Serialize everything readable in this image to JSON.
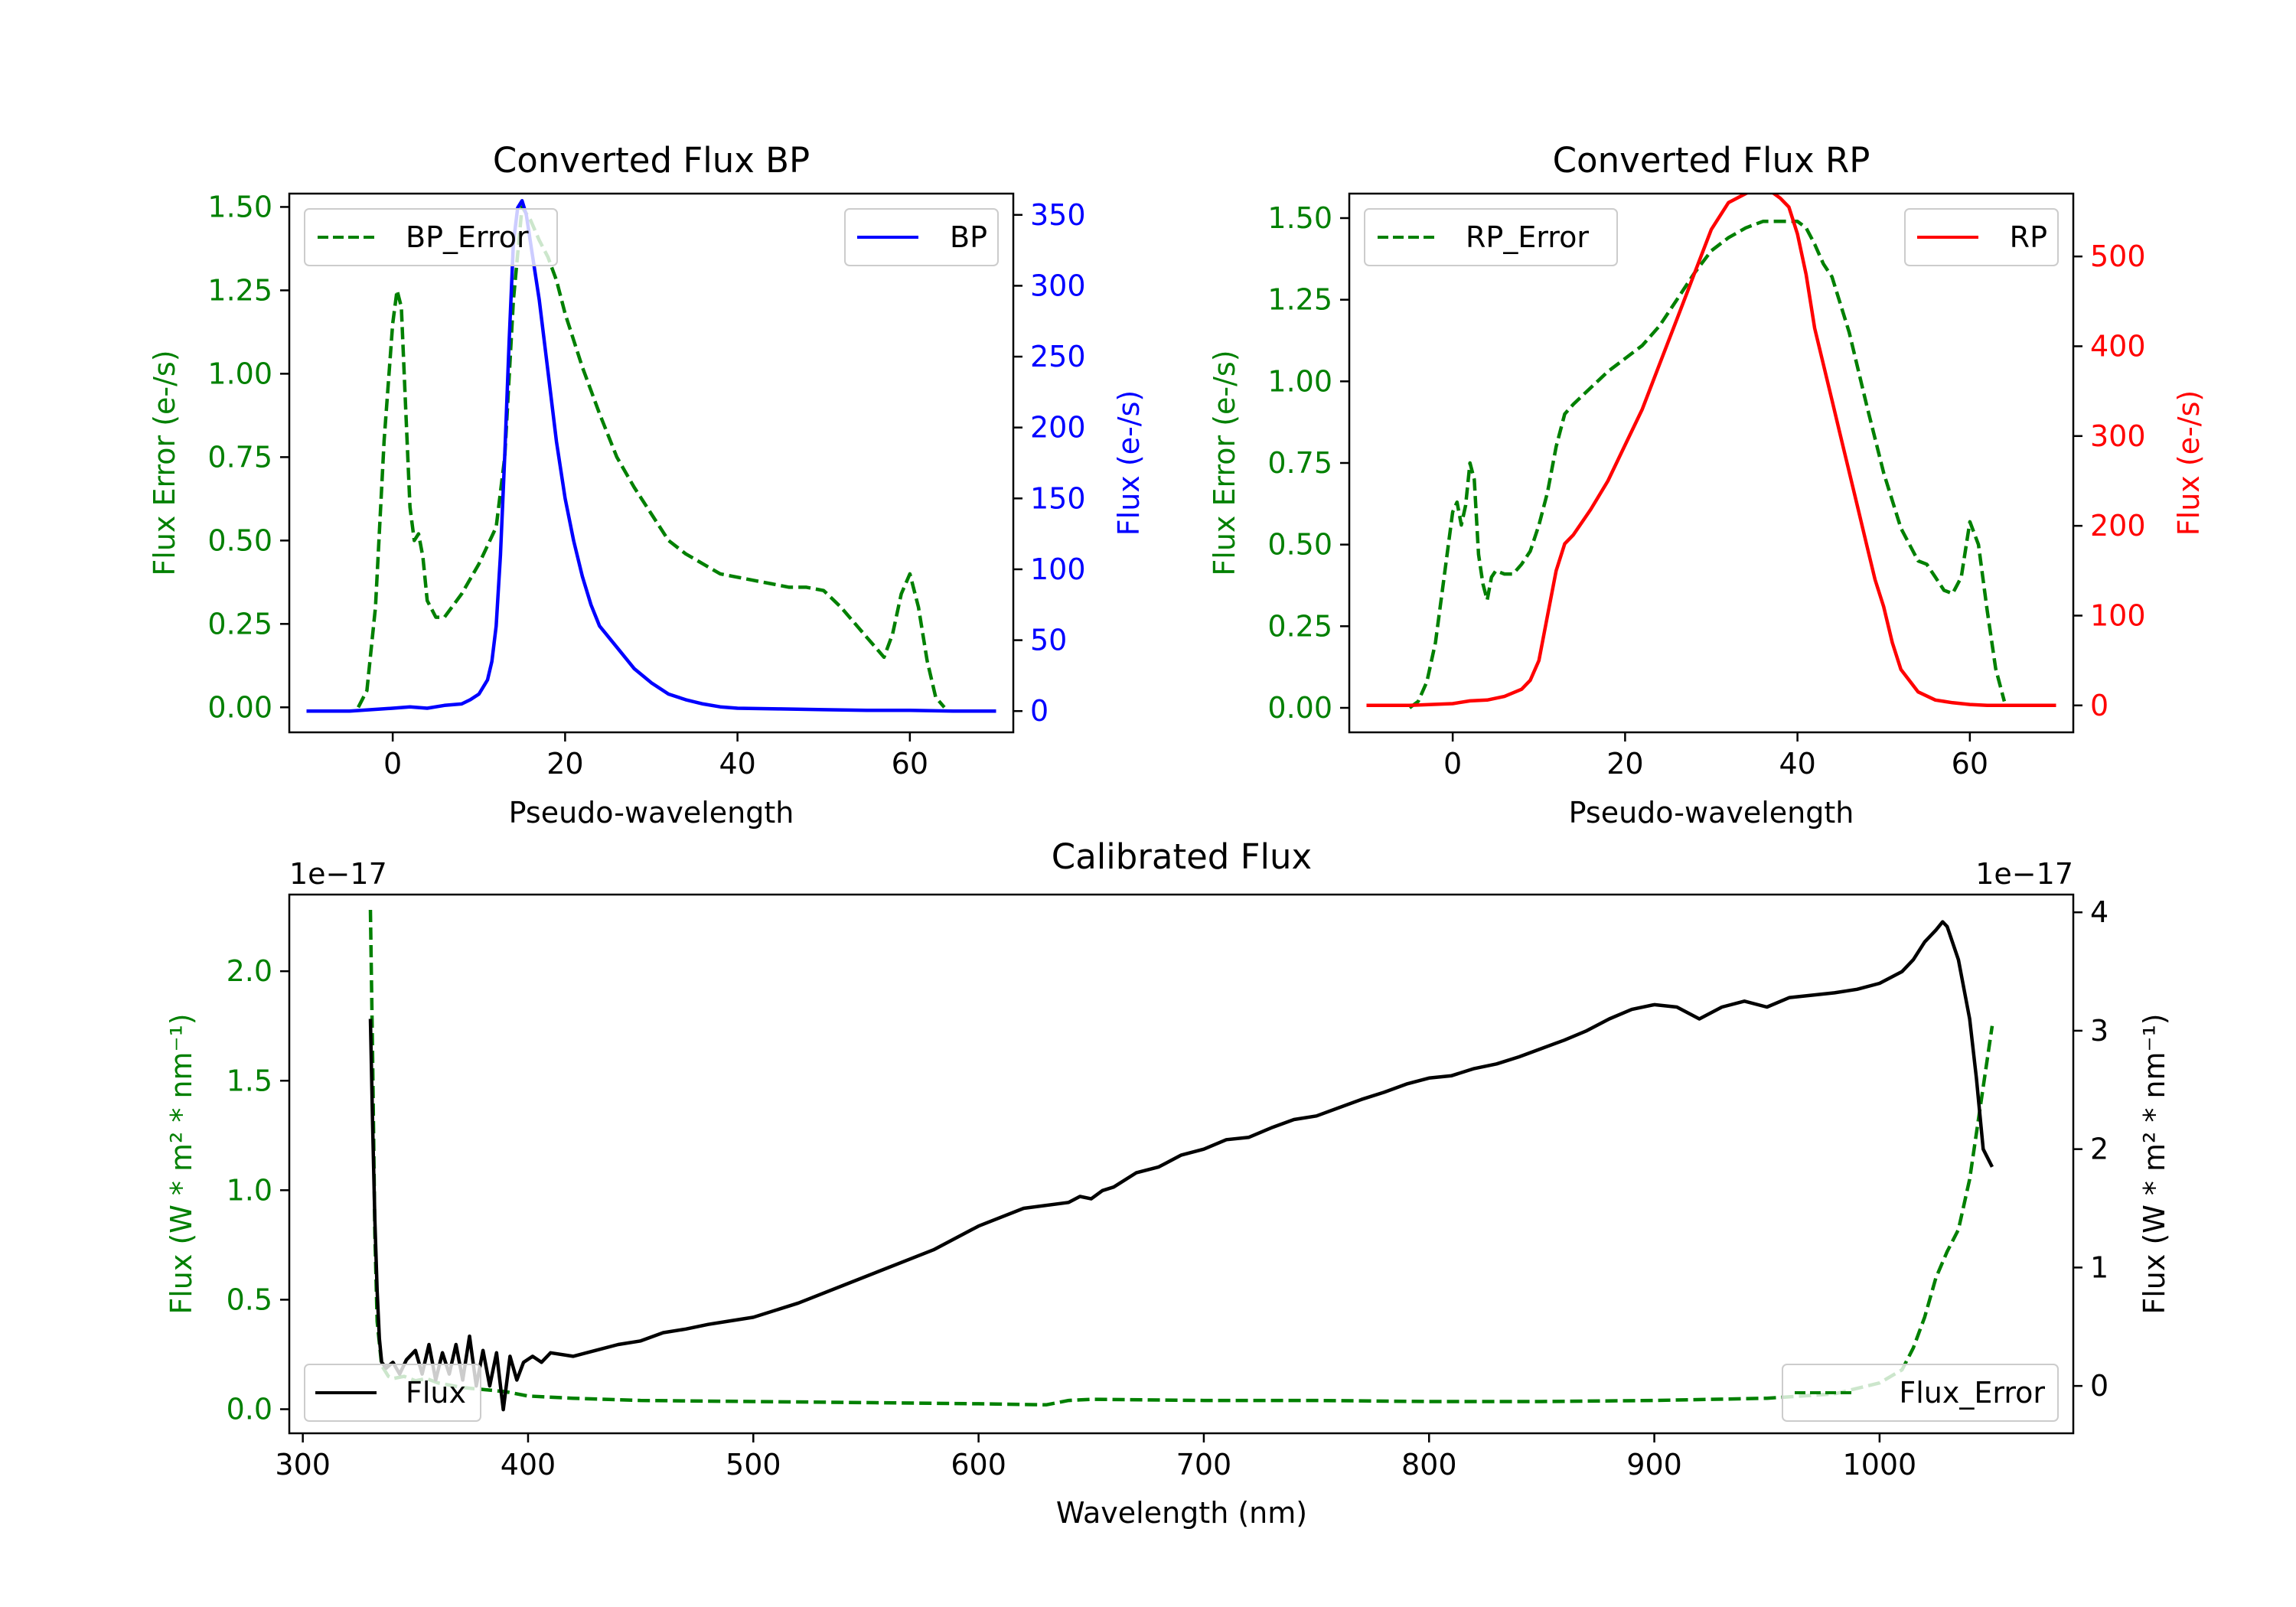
{
  "chart_data": [
    {
      "type": "line",
      "title": "Converted Flux BP",
      "xlabel": "Pseudo-wavelength",
      "ylabel_left": "Flux Error (e-/s)",
      "ylabel_right": "Flux (e-/s)",
      "xlim": [
        -12,
        72
      ],
      "ylim_left": [
        -0.075,
        1.54
      ],
      "ylim_right": [
        -15,
        365
      ],
      "xticks": [
        0,
        20,
        40,
        60
      ],
      "yticks_left": [
        0.0,
        0.25,
        0.5,
        0.75,
        1.0,
        1.25,
        1.5
      ],
      "yticks_right": [
        0,
        50,
        100,
        150,
        200,
        250,
        300,
        350
      ],
      "ytick_labels_left": [
        "0.00",
        "0.25",
        "0.50",
        "0.75",
        "1.00",
        "1.25",
        "1.50"
      ],
      "ytick_labels_right": [
        "0",
        "50",
        "100",
        "150",
        "200",
        "250",
        "300",
        "350"
      ],
      "left_color": "#008000",
      "right_color": "#0000ff",
      "legend_left": {
        "label": "BP_Error",
        "position": "upper left"
      },
      "legend_right": {
        "label": "BP",
        "position": "upper right"
      },
      "series": [
        {
          "name": "BP_Error",
          "axis": "left",
          "style": "dashed",
          "color": "#008000",
          "x": [
            -4,
            -3,
            -2,
            -1,
            0,
            0.5,
            1,
            1.5,
            2,
            2.5,
            3,
            3.5,
            4,
            5,
            6,
            8,
            10,
            12,
            13,
            14,
            15,
            16,
            17,
            18,
            19,
            20,
            22,
            24,
            26,
            28,
            30,
            32,
            34,
            36,
            38,
            40,
            42,
            44,
            46,
            48,
            50,
            52,
            54,
            55,
            56,
            57,
            58,
            59,
            60,
            61,
            62,
            63,
            64
          ],
          "y": [
            0.0,
            0.05,
            0.3,
            0.8,
            1.15,
            1.25,
            1.2,
            0.9,
            0.6,
            0.5,
            0.52,
            0.45,
            0.32,
            0.27,
            0.27,
            0.34,
            0.43,
            0.54,
            0.75,
            1.22,
            1.5,
            1.46,
            1.4,
            1.35,
            1.28,
            1.18,
            1.02,
            0.88,
            0.75,
            0.66,
            0.58,
            0.5,
            0.46,
            0.43,
            0.4,
            0.39,
            0.38,
            0.37,
            0.36,
            0.36,
            0.35,
            0.3,
            0.24,
            0.21,
            0.18,
            0.15,
            0.22,
            0.34,
            0.4,
            0.3,
            0.14,
            0.03,
            0.0
          ]
        },
        {
          "name": "BP",
          "axis": "right",
          "style": "solid",
          "color": "#0000ff",
          "x": [
            -10,
            -5,
            0,
            2,
            4,
            6,
            8,
            9,
            10,
            11,
            11.5,
            12,
            12.5,
            13,
            13.5,
            14,
            14.5,
            15,
            15.5,
            16,
            17,
            18,
            19,
            20,
            21,
            22,
            23,
            24,
            26,
            28,
            30,
            32,
            34,
            36,
            38,
            40,
            45,
            50,
            55,
            60,
            65,
            70
          ],
          "y": [
            0,
            0,
            2,
            3,
            2,
            4,
            5,
            8,
            12,
            22,
            35,
            60,
            110,
            180,
            260,
            330,
            355,
            360,
            350,
            330,
            290,
            240,
            190,
            150,
            120,
            95,
            75,
            60,
            45,
            30,
            20,
            12,
            8,
            5,
            3,
            2,
            1.5,
            1,
            0.5,
            0.5,
            0,
            0
          ]
        }
      ]
    },
    {
      "type": "line",
      "title": "Converted Flux RP",
      "xlabel": "Pseudo-wavelength",
      "ylabel_left": "Flux Error (e-/s)",
      "ylabel_right": "Flux (e-/s)",
      "xlim": [
        -12,
        72
      ],
      "ylim_left": [
        -0.075,
        1.575
      ],
      "ylim_right": [
        -30,
        570
      ],
      "xticks": [
        0,
        20,
        40,
        60
      ],
      "yticks_left": [
        0.0,
        0.25,
        0.5,
        0.75,
        1.0,
        1.25,
        1.5
      ],
      "yticks_right": [
        0,
        100,
        200,
        300,
        400,
        500
      ],
      "ytick_labels_left": [
        "0.00",
        "0.25",
        "0.50",
        "0.75",
        "1.00",
        "1.25",
        "1.50"
      ],
      "ytick_labels_right": [
        "0",
        "100",
        "200",
        "300",
        "400",
        "500"
      ],
      "left_color": "#008000",
      "right_color": "#ff0000",
      "legend_left": {
        "label": "RP_Error",
        "position": "upper left"
      },
      "legend_right": {
        "label": "RP",
        "position": "upper right"
      },
      "series": [
        {
          "name": "RP_Error",
          "axis": "left",
          "style": "dashed",
          "color": "#008000",
          "x": [
            -5,
            -4,
            -3,
            -2,
            -1,
            0,
            0.5,
            1,
            1.5,
            2,
            2.5,
            3,
            3.5,
            4,
            4.5,
            5,
            6,
            7,
            8,
            9,
            10,
            11,
            12,
            13,
            14,
            16,
            18,
            20,
            22,
            24,
            26,
            28,
            30,
            32,
            34,
            35,
            36,
            37,
            38,
            39,
            40,
            41,
            42,
            43,
            44,
            46,
            48,
            50,
            52,
            54,
            55,
            56,
            57,
            58,
            59,
            60,
            61,
            62,
            63,
            64
          ],
          "y": [
            0.0,
            0.02,
            0.08,
            0.2,
            0.4,
            0.6,
            0.63,
            0.56,
            0.62,
            0.75,
            0.7,
            0.47,
            0.38,
            0.33,
            0.4,
            0.42,
            0.41,
            0.41,
            0.44,
            0.48,
            0.56,
            0.66,
            0.8,
            0.9,
            0.93,
            0.98,
            1.03,
            1.07,
            1.11,
            1.17,
            1.25,
            1.33,
            1.4,
            1.44,
            1.47,
            1.48,
            1.49,
            1.49,
            1.49,
            1.49,
            1.49,
            1.47,
            1.42,
            1.36,
            1.32,
            1.15,
            0.93,
            0.72,
            0.55,
            0.45,
            0.44,
            0.4,
            0.36,
            0.35,
            0.4,
            0.57,
            0.5,
            0.3,
            0.12,
            0.02
          ]
        },
        {
          "name": "RP",
          "axis": "right",
          "style": "solid",
          "color": "#ff0000",
          "x": [
            -10,
            -5,
            0,
            2,
            4,
            6,
            8,
            9,
            10,
            11,
            12,
            13,
            14,
            16,
            18,
            20,
            22,
            24,
            26,
            28,
            30,
            32,
            34,
            35,
            36,
            37,
            38,
            39,
            40,
            41,
            42,
            43,
            44,
            45,
            46,
            47,
            48,
            49,
            50,
            51,
            52,
            54,
            56,
            58,
            60,
            62,
            65,
            70
          ],
          "y": [
            0,
            0,
            2,
            5,
            6,
            10,
            18,
            28,
            50,
            100,
            150,
            180,
            190,
            218,
            250,
            290,
            330,
            380,
            430,
            480,
            530,
            560,
            570,
            575,
            575,
            572,
            565,
            555,
            525,
            480,
            420,
            380,
            340,
            300,
            260,
            220,
            180,
            140,
            110,
            70,
            40,
            15,
            6,
            3,
            1,
            0,
            0,
            0
          ]
        }
      ]
    },
    {
      "type": "line",
      "title": "Calibrated Flux",
      "xlabel": "Wavelength (nm)",
      "ylabel_left": "Flux (W * m² * nm⁻¹)",
      "ylabel_right": "Flux (W * m² * nm⁻¹)",
      "offset_left": "1e−17",
      "offset_right": "1e−17",
      "xlim": [
        294,
        1086
      ],
      "ylim_left": [
        -0.11,
        2.35
      ],
      "ylim_right": [
        -0.4,
        4.15
      ],
      "xticks": [
        300,
        400,
        500,
        600,
        700,
        800,
        900,
        1000
      ],
      "yticks_left": [
        0.0,
        0.5,
        1.0,
        1.5,
        2.0
      ],
      "yticks_right": [
        0,
        1,
        2,
        3,
        4
      ],
      "ytick_labels_left": [
        "0.0",
        "0.5",
        "1.0",
        "1.5",
        "2.0"
      ],
      "ytick_labels_right": [
        "0",
        "1",
        "2",
        "3",
        "4"
      ],
      "left_color": "#008000",
      "right_color": "#000000",
      "legend_left": {
        "label": "Flux",
        "position": "lower left"
      },
      "legend_right": {
        "label": "Flux_Error",
        "position": "lower right"
      },
      "series": [
        {
          "name": "Flux_Error",
          "axis": "left",
          "style": "dashed",
          "color": "#008000",
          "x": [
            330,
            331,
            332,
            333,
            335,
            338,
            340,
            345,
            350,
            355,
            360,
            365,
            370,
            380,
            390,
            400,
            420,
            450,
            500,
            550,
            600,
            630,
            640,
            650,
            700,
            750,
            800,
            850,
            900,
            950,
            980,
            1000,
            1010,
            1015,
            1020,
            1025,
            1030,
            1035,
            1040,
            1045,
            1050
          ],
          "y": [
            2.28,
            1.6,
            0.8,
            0.4,
            0.2,
            0.15,
            0.14,
            0.15,
            0.13,
            0.14,
            0.12,
            0.11,
            0.1,
            0.09,
            0.08,
            0.06,
            0.05,
            0.04,
            0.035,
            0.03,
            0.025,
            0.02,
            0.04,
            0.045,
            0.04,
            0.04,
            0.035,
            0.035,
            0.04,
            0.05,
            0.07,
            0.12,
            0.18,
            0.28,
            0.42,
            0.6,
            0.72,
            0.82,
            1.05,
            1.4,
            1.75
          ]
        },
        {
          "name": "Flux",
          "axis": "right",
          "style": "solid",
          "color": "#000000",
          "x": [
            330,
            331,
            332,
            333,
            334,
            335,
            337,
            340,
            343,
            346,
            350,
            353,
            356,
            359,
            362,
            365,
            368,
            371,
            374,
            377,
            380,
            383,
            386,
            389,
            392,
            395,
            398,
            402,
            406,
            410,
            420,
            430,
            440,
            450,
            460,
            470,
            480,
            490,
            500,
            520,
            540,
            560,
            580,
            600,
            620,
            640,
            645,
            650,
            655,
            660,
            670,
            680,
            690,
            700,
            710,
            720,
            730,
            740,
            750,
            760,
            770,
            780,
            790,
            800,
            810,
            820,
            830,
            840,
            850,
            860,
            870,
            880,
            890,
            900,
            910,
            920,
            930,
            940,
            950,
            960,
            970,
            980,
            990,
            1000,
            1010,
            1015,
            1020,
            1025,
            1028,
            1030,
            1035,
            1040,
            1043,
            1046,
            1050
          ],
          "y": [
            3.1,
            2.2,
            1.4,
            0.8,
            0.4,
            0.2,
            0.15,
            0.2,
            0.1,
            0.22,
            0.3,
            0.1,
            0.35,
            0.05,
            0.28,
            0.1,
            0.35,
            0.05,
            0.42,
            0.0,
            0.3,
            0.0,
            0.28,
            -0.2,
            0.25,
            0.05,
            0.2,
            0.25,
            0.2,
            0.28,
            0.25,
            0.3,
            0.35,
            0.38,
            0.45,
            0.48,
            0.52,
            0.55,
            0.58,
            0.7,
            0.85,
            1.0,
            1.15,
            1.35,
            1.5,
            1.55,
            1.6,
            1.58,
            1.65,
            1.68,
            1.8,
            1.85,
            1.95,
            2.0,
            2.08,
            2.1,
            2.18,
            2.25,
            2.28,
            2.35,
            2.42,
            2.48,
            2.55,
            2.6,
            2.62,
            2.68,
            2.72,
            2.78,
            2.85,
            2.92,
            3.0,
            3.1,
            3.18,
            3.22,
            3.2,
            3.1,
            3.2,
            3.25,
            3.2,
            3.28,
            3.3,
            3.32,
            3.35,
            3.4,
            3.5,
            3.6,
            3.75,
            3.85,
            3.92,
            3.88,
            3.6,
            3.1,
            2.6,
            2.0,
            1.85
          ]
        }
      ]
    }
  ]
}
